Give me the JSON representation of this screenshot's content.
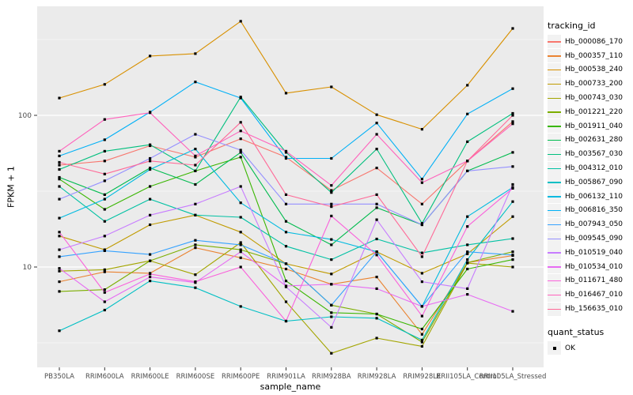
{
  "chart_data": {
    "type": "line",
    "title": "",
    "xlabel": "sample_name",
    "ylabel": "FPKM + 1",
    "y_scale": "log10",
    "y_ticks": [
      10,
      100
    ],
    "y_tick_labels": [
      "10",
      "100"
    ],
    "y_minor_ticks": [
      3.162,
      31.62,
      316.2
    ],
    "ylim": [
      2.4,
      520
    ],
    "grid": true,
    "legend_position": "right",
    "marker": "black-square",
    "panel_color": "#EBEBEB",
    "grid_color": "#FFFFFF",
    "tick_text_color": "#4D4D4D",
    "x_categories": [
      "PB350LA",
      "RRIM600LA",
      "RRIM600LE",
      "RRIM600SE",
      "RRIM600PE",
      "RRIM901LA",
      "RRIM928BA",
      "RRIM928LA",
      "RRIM928LE",
      "RRII105LA_Control",
      "RRII105LA_Stressed"
    ],
    "legend": {
      "color_title": "tracking_id",
      "shape_title": "quant_status",
      "shape_items": [
        "OK"
      ]
    },
    "series": [
      {
        "name": "Hb_000086_170",
        "color": "#F8766D",
        "values": [
          47,
          50,
          63,
          53,
          70,
          53,
          32,
          45,
          26,
          50,
          91
        ]
      },
      {
        "name": "Hb_000357_110",
        "color": "#EA8331",
        "values": [
          8,
          9.3,
          9.1,
          13.4,
          11.5,
          9.7,
          7.7,
          8.6,
          3.6,
          10.7,
          11.9
        ]
      },
      {
        "name": "Hb_000538_240",
        "color": "#D89000",
        "values": [
          130,
          160,
          246,
          255,
          417,
          140,
          154,
          101,
          81,
          158,
          374
        ]
      },
      {
        "name": "Hb_000733_200",
        "color": "#C09B00",
        "values": [
          16,
          13,
          19,
          22,
          17,
          10.5,
          9,
          12.6,
          9.1,
          12.2,
          21.5
        ]
      },
      {
        "name": "Hb_000743_030",
        "color": "#A3A500",
        "values": [
          9.4,
          9.6,
          11,
          8.9,
          14.5,
          5.9,
          2.7,
          3.4,
          3.0,
          10.6,
          10
        ]
      },
      {
        "name": "Hb_001221_220",
        "color": "#7CAE00",
        "values": [
          6.9,
          7.1,
          11,
          14,
          13,
          10.5,
          5.6,
          4.9,
          3.2,
          10.7,
          12.6
        ]
      },
      {
        "name": "Hb_001911_040",
        "color": "#39B600",
        "values": [
          38,
          24,
          34,
          43,
          53,
          8.1,
          5,
          4.9,
          3.9,
          9.7,
          11.2
        ]
      },
      {
        "name": "Hb_002631_280",
        "color": "#00BB4E",
        "values": [
          39,
          30,
          45,
          35,
          57,
          20,
          14,
          24.6,
          19,
          43,
          57
        ]
      },
      {
        "name": "Hb_003567_030",
        "color": "#00BF7D",
        "values": [
          44,
          58,
          64,
          43,
          132,
          57,
          31,
          60,
          19.4,
          67,
          103
        ]
      },
      {
        "name": "Hb_004312_010",
        "color": "#00C1A3",
        "values": [
          34,
          20,
          28,
          22,
          21.3,
          13.7,
          11.2,
          15.3,
          12.4,
          14,
          15.4
        ]
      },
      {
        "name": "Hb_005867_090",
        "color": "#00BFC4",
        "values": [
          3.8,
          5.2,
          8.1,
          7.3,
          5.5,
          4.4,
          4.7,
          4.6,
          3.3,
          11.2,
          27
        ]
      },
      {
        "name": "Hb_006132_110",
        "color": "#00BAE0",
        "values": [
          21,
          28,
          44,
          60,
          26.5,
          17,
          15.2,
          12.6,
          5.5,
          21.5,
          33.5
        ]
      },
      {
        "name": "Hb_006816_350",
        "color": "#00B0F6",
        "values": [
          54,
          69,
          105,
          166,
          130,
          52,
          52,
          89,
          38,
          102,
          150
        ]
      },
      {
        "name": "Hb_007943_050",
        "color": "#35A2FF",
        "values": [
          11.7,
          12.8,
          12.1,
          15,
          14,
          10.5,
          5.6,
          12.6,
          5.5,
          12.6,
          12
        ]
      },
      {
        "name": "Hb_009545_090",
        "color": "#9590FF",
        "values": [
          28,
          37,
          52,
          75,
          59,
          26,
          26,
          26,
          19,
          43,
          46
        ]
      },
      {
        "name": "Hb_010519_040",
        "color": "#C77CFF",
        "values": [
          13,
          16,
          22,
          26,
          34,
          7.4,
          4,
          20.5,
          8,
          7.2,
          35
        ]
      },
      {
        "name": "Hb_010534_010",
        "color": "#E76BF3",
        "values": [
          9.8,
          5.9,
          8.6,
          7.9,
          12.6,
          7.5,
          7.7,
          7.2,
          5.5,
          6.6,
          5.1
        ]
      },
      {
        "name": "Hb_011671_480",
        "color": "#FA62DB",
        "values": [
          17,
          6.8,
          9,
          8,
          10,
          4.4,
          21.7,
          12,
          4.75,
          18.5,
          33
        ]
      },
      {
        "name": "Hb_016467_010",
        "color": "#FF62BC",
        "values": [
          58,
          94,
          104,
          54,
          79,
          58,
          34.5,
          75,
          36,
          50,
          88
        ]
      },
      {
        "name": "Hb_156635_010",
        "color": "#FF6A98",
        "values": [
          49,
          41,
          50,
          47,
          90,
          30,
          25,
          30,
          11.7,
          50,
          100
        ]
      }
    ]
  }
}
